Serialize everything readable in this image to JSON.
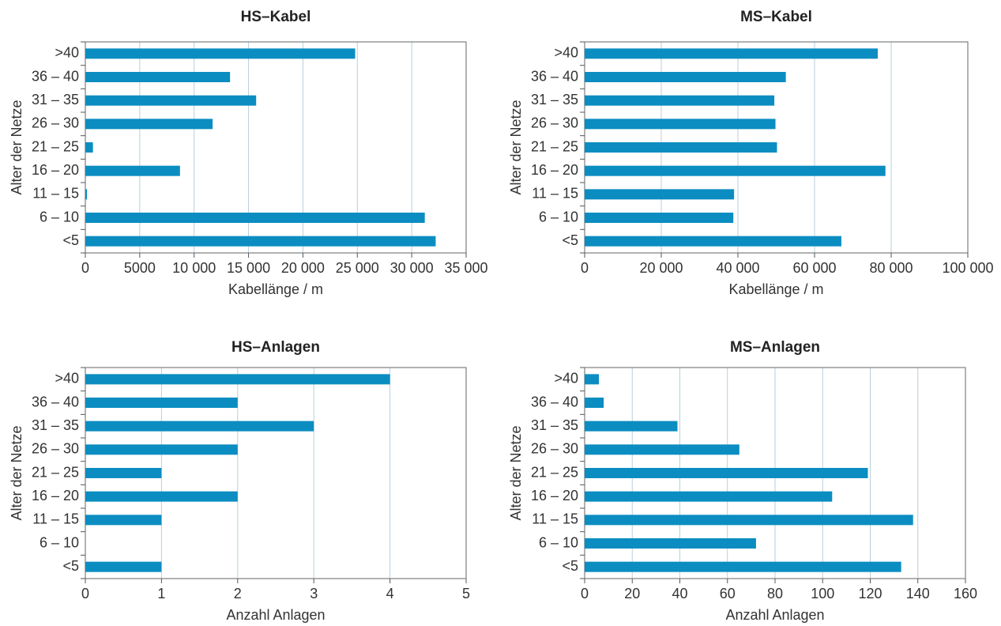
{
  "chart_data": [
    {
      "type": "barh",
      "title": "HS–Kabel",
      "xlabel": "Kabellänge / m",
      "ylabel": "Alter der Netze",
      "categories": [
        ">40",
        "36 – 40",
        "31 – 35",
        "26 – 30",
        "21 – 25",
        "16 – 20",
        "11 – 15",
        "6 – 10",
        "<5"
      ],
      "values": [
        24800,
        13300,
        15700,
        11700,
        700,
        8700,
        150,
        31200,
        32200
      ],
      "color": "#0b8dc1",
      "xlim": [
        0,
        35000
      ],
      "xticks": [
        0,
        5000,
        {
          "value": 10000,
          "label": "10 000"
        },
        {
          "value": 15000,
          "label": "15 000"
        },
        {
          "value": 20000,
          "label": "20 000"
        },
        {
          "value": 25000,
          "label": "25 000"
        },
        {
          "value": 30000,
          "label": "30 000"
        },
        {
          "value": 35000,
          "label": "35 000"
        }
      ],
      "grid": true
    },
    {
      "type": "barh",
      "title": "MS–Kabel",
      "xlabel": "Kabellänge / m",
      "ylabel": "Alter der Netze",
      "categories": [
        ">40",
        "36 – 40",
        "31 – 35",
        "26 – 30",
        "21 – 25",
        "16 – 20",
        "11 – 15",
        "6 – 10",
        "<5"
      ],
      "values": [
        76500,
        52500,
        49500,
        49800,
        50200,
        78500,
        39000,
        38800,
        67000
      ],
      "color": "#0b8dc1",
      "xlim": [
        0,
        100000
      ],
      "xticks": [
        0,
        {
          "value": 20000,
          "label": "20 000"
        },
        {
          "value": 40000,
          "label": "40 000"
        },
        {
          "value": 60000,
          "label": "60 000"
        },
        {
          "value": 80000,
          "label": "80 000"
        },
        {
          "value": 100000,
          "label": "100 000"
        }
      ],
      "grid": true
    },
    {
      "type": "barh",
      "title": "HS–Anlagen",
      "xlabel": "Anzahl Anlagen",
      "ylabel": "Alter der Netze",
      "categories": [
        ">40",
        "36 – 40",
        "31 – 35",
        "26 – 30",
        "21 – 25",
        "16 – 20",
        "11 – 15",
        "6 – 10",
        "<5"
      ],
      "values": [
        4,
        2,
        3,
        2,
        1,
        2,
        1,
        0,
        1
      ],
      "color": "#0b8dc1",
      "xlim": [
        0,
        5
      ],
      "xticks": [
        0,
        1,
        2,
        3,
        4,
        5
      ],
      "grid": true
    },
    {
      "type": "barh",
      "title": "MS–Anlagen",
      "xlabel": "Anzahl Anlagen",
      "ylabel": "Alter der Netze",
      "categories": [
        ">40",
        "36 – 40",
        "31 – 35",
        "26 – 30",
        "21 – 25",
        "16 – 20",
        "11 – 15",
        "6 – 10",
        "<5"
      ],
      "values": [
        6,
        8,
        39,
        65,
        119,
        104,
        138,
        72,
        133
      ],
      "color": "#0b8dc1",
      "xlim": [
        0,
        160
      ],
      "xticks": [
        0,
        20,
        40,
        60,
        80,
        100,
        120,
        140,
        160
      ],
      "grid": true
    }
  ]
}
